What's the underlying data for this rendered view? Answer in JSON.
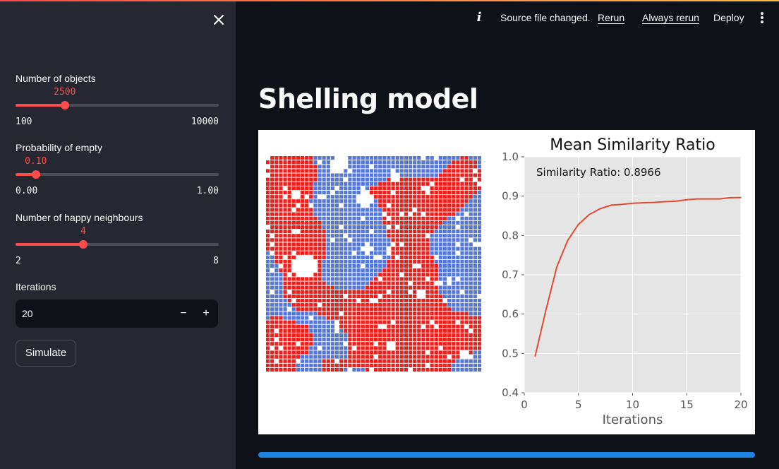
{
  "sidebar": {
    "sliders": [
      {
        "label": "Number of objects",
        "value": 2500,
        "value_text": "2500",
        "min": 100,
        "max": 10000,
        "min_text": "100",
        "max_text": "10000"
      },
      {
        "label": "Probability of empty",
        "value": 0.1,
        "value_text": "0.10",
        "min": 0,
        "max": 1,
        "min_text": "0.00",
        "max_text": "1.00"
      },
      {
        "label": "Number of happy neighbours",
        "value": 4,
        "value_text": "4",
        "min": 2,
        "max": 8,
        "min_text": "2",
        "max_text": "8"
      }
    ],
    "iterations": {
      "label": "Iterations",
      "value": "20",
      "minus": "−",
      "plus": "+"
    },
    "simulate_label": "Simulate"
  },
  "header": {
    "status": "Source file changed.",
    "rerun_label": "Rerun",
    "always_rerun_label": "Always rerun",
    "deploy_label": "Deploy"
  },
  "main": {
    "title": "Shelling model",
    "progress": 1.0
  },
  "colors": {
    "accent": "#ff4b4b",
    "agent_red": "#e8221f",
    "agent_blue": "#5577d6",
    "plot_line": "#e24a33",
    "plot_bg": "#e5e5e5",
    "progress": "#1c83e1"
  },
  "grid_data": {
    "type": "heatmap",
    "size": 50,
    "red_blobs": [
      [
        0.06,
        0.05,
        0.1
      ],
      [
        0.15,
        0.12,
        0.09
      ],
      [
        0.42,
        0.12,
        0.08
      ],
      [
        0.9,
        0.1,
        0.09
      ],
      [
        0.64,
        0.18,
        0.11
      ],
      [
        0.78,
        0.22,
        0.09
      ],
      [
        0.1,
        0.33,
        0.1
      ],
      [
        0.21,
        0.4,
        0.11
      ],
      [
        0.62,
        0.34,
        0.09
      ],
      [
        0.76,
        0.5,
        0.09
      ],
      [
        0.18,
        0.62,
        0.08
      ],
      [
        0.35,
        0.68,
        0.06
      ],
      [
        0.55,
        0.62,
        0.11
      ],
      [
        0.45,
        0.78,
        0.12
      ],
      [
        0.64,
        0.72,
        0.1
      ],
      [
        0.8,
        0.83,
        0.1
      ],
      [
        0.73,
        0.97,
        0.08
      ],
      [
        0.96,
        0.82,
        0.06
      ],
      [
        0.04,
        0.82,
        0.06
      ],
      [
        0.18,
        0.85,
        0.05
      ],
      [
        0.06,
        0.96,
        0.07
      ],
      [
        0.3,
        0.96,
        0.06
      ],
      [
        0.51,
        0.9,
        0.07
      ]
    ],
    "blue_blobs": [
      [
        0.45,
        0.01,
        0.1
      ],
      [
        0.75,
        0.04,
        0.07
      ],
      [
        0.3,
        0.2,
        0.08
      ],
      [
        0.45,
        0.36,
        0.1
      ],
      [
        0.4,
        0.55,
        0.09
      ],
      [
        0.88,
        0.44,
        0.1
      ],
      [
        0.3,
        0.87,
        0.07
      ]
    ],
    "empty_blobs": [
      [
        0.34,
        0.04,
        0.03
      ],
      [
        0.46,
        0.2,
        0.03
      ],
      [
        0.14,
        0.18,
        0.02
      ],
      [
        0.18,
        0.51,
        0.05
      ],
      [
        0.47,
        0.43,
        0.02
      ],
      [
        0.33,
        0.8,
        0.02
      ],
      [
        0.85,
        0.58,
        0.02
      ],
      [
        0.58,
        0.88,
        0.02
      ],
      [
        0.72,
        0.64,
        0.02
      ],
      [
        0.92,
        0.92,
        0.02
      ],
      [
        0.6,
        0.1,
        0.02
      ]
    ]
  },
  "chart_data": {
    "type": "line",
    "title": "Mean Similarity Ratio",
    "xlabel": "Iterations",
    "ylabel": "",
    "annotation": "Similarity Ratio: 0.8966",
    "xlim": [
      0,
      20
    ],
    "ylim": [
      0.4,
      1.0
    ],
    "xticks": [
      0,
      5,
      10,
      15,
      20
    ],
    "xtick_labels": [
      "0",
      "5",
      "10",
      "15",
      "20"
    ],
    "yticks": [
      0.4,
      0.5,
      0.6,
      0.7,
      0.8,
      0.9,
      1.0
    ],
    "ytick_labels": [
      "0.4",
      "0.5",
      "0.6",
      "0.7",
      "0.8",
      "0.9",
      "1.0"
    ],
    "grid": true,
    "style": "ggplot",
    "series": [
      {
        "x": [
          1,
          2,
          3,
          4,
          5,
          6,
          7,
          8,
          9,
          10,
          11,
          12,
          13,
          14,
          15,
          16,
          17,
          18,
          19,
          20
        ],
        "y": [
          0.493,
          0.61,
          0.72,
          0.787,
          0.828,
          0.853,
          0.868,
          0.877,
          0.879,
          0.882,
          0.883,
          0.884,
          0.886,
          0.887,
          0.891,
          0.893,
          0.893,
          0.893,
          0.896,
          0.8966
        ]
      }
    ]
  }
}
